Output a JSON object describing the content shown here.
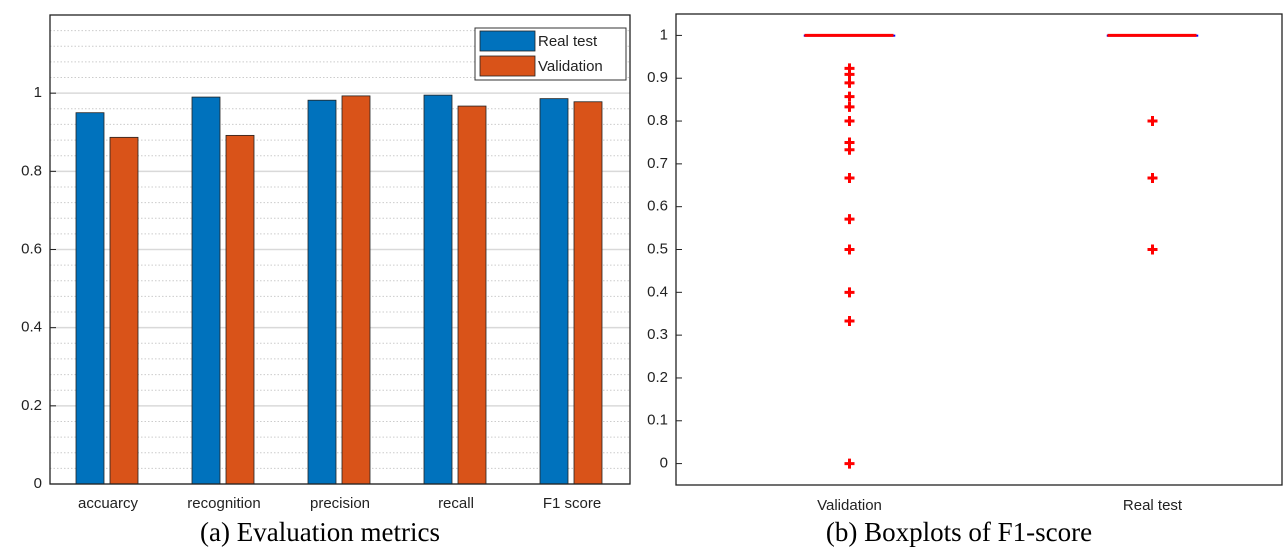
{
  "chart_data": [
    {
      "type": "bar",
      "categories": [
        "accuarcy",
        "recognition",
        "precision",
        "recall",
        "F1 score"
      ],
      "series": [
        {
          "name": "Real test",
          "color": "#0072bd",
          "values": [
            0.95,
            0.99,
            0.982,
            0.995,
            0.986
          ]
        },
        {
          "name": "Validation",
          "color": "#d95319",
          "values": [
            0.887,
            0.892,
            0.993,
            0.967,
            0.978
          ]
        }
      ],
      "ylim": [
        0,
        1.2
      ],
      "yticks": [
        0,
        0.2,
        0.4,
        0.6,
        0.8,
        1
      ],
      "minor_yticks": [
        0.04,
        0.08,
        0.12,
        0.16,
        0.24,
        0.28,
        0.32,
        0.36,
        0.44,
        0.48,
        0.52,
        0.56,
        0.64,
        0.68,
        0.72,
        0.76,
        0.84,
        0.88,
        0.92,
        0.96,
        1.04,
        1.08,
        1.12,
        1.16
      ],
      "grid": true,
      "minor_grid": true,
      "legend": "northeast",
      "caption": "(a) Evaluation metrics"
    },
    {
      "type": "box",
      "categories": [
        "Validation",
        "Real test"
      ],
      "boxes": [
        {
          "median": 1,
          "q1": 1,
          "q3": 1,
          "whisker_low": 1,
          "whisker_high": 1,
          "outliers": [
            0.923,
            0.909,
            0.889,
            0.857,
            0.833,
            0.8,
            0.75,
            0.733,
            0.667,
            0.571,
            0.5,
            0.4,
            0.333,
            0
          ]
        },
        {
          "median": 1,
          "q1": 1,
          "q3": 1,
          "whisker_low": 1,
          "whisker_high": 1,
          "outliers": [
            0.8,
            0.667,
            0.5
          ]
        }
      ],
      "median_color": "#ff0000",
      "box_color": "#0000ff",
      "outlier_color": "#ff0000",
      "ylim": [
        -0.05,
        1.05
      ],
      "yticks": [
        0,
        0.1,
        0.2,
        0.3,
        0.4,
        0.5,
        0.6,
        0.7,
        0.8,
        0.9,
        1
      ],
      "grid": false,
      "caption": "(b) Boxplots of F1-score"
    }
  ]
}
